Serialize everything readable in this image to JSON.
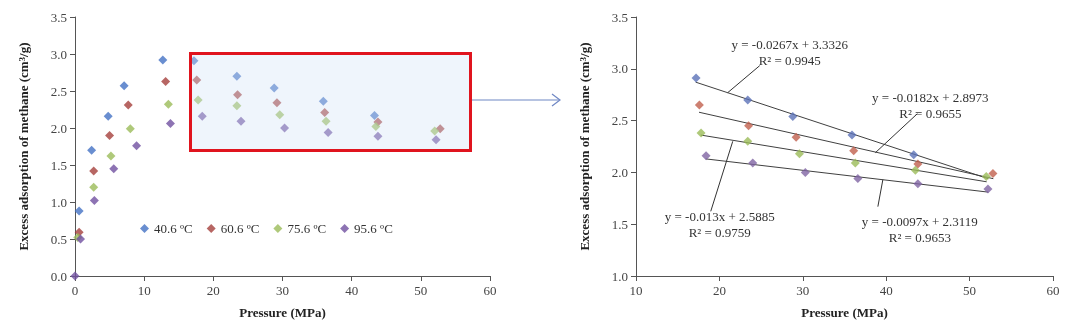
{
  "chart_data": [
    {
      "type": "scatter",
      "xlabel": "Pressure (MPa)",
      "ylabel": "Excess adsorption of methane (cm$^{3}$/g)",
      "xlim": [
        0,
        60
      ],
      "xticks": [
        0,
        10,
        20,
        30,
        40,
        50,
        60
      ],
      "ylim": [
        0,
        3.5
      ],
      "yticks": [
        {
          "value": 0,
          "label": "0.0"
        },
        {
          "value": 0.5,
          "label": "0.5"
        },
        {
          "value": 1,
          "label": "1.0"
        },
        {
          "value": 1.5,
          "label": "1.5"
        },
        {
          "value": 2,
          "label": "2.0"
        },
        {
          "value": 2.5,
          "label": "2.5"
        },
        {
          "value": 3,
          "label": "3.0"
        },
        {
          "value": 3.5,
          "label": "3.5"
        }
      ],
      "grid": false,
      "legend": "bottom",
      "marker": "diamond",
      "series": [
        {
          "name": "40.6 ºC",
          "color": "#4472c4",
          "x": [
            0.6,
            2.4,
            4.8,
            7.1,
            12.7,
            17.2,
            23.4,
            28.8,
            35.9,
            43.3
          ],
          "values": [
            0.88,
            1.7,
            2.16,
            2.57,
            2.92,
            2.91,
            2.7,
            2.54,
            2.36,
            2.17
          ]
        },
        {
          "name": "60.6 ºC",
          "color": "#a5403c",
          "x": [
            0.6,
            2.7,
            5.0,
            7.7,
            13.1,
            17.6,
            23.5,
            29.2,
            36.1,
            43.8,
            52.8
          ],
          "values": [
            0.59,
            1.42,
            1.9,
            2.31,
            2.63,
            2.65,
            2.45,
            2.34,
            2.21,
            2.08,
            1.99
          ]
        },
        {
          "name": "75.6 ºC",
          "color": "#9bbb59",
          "x": [
            0.4,
            2.7,
            5.2,
            8.0,
            13.5,
            17.8,
            23.4,
            29.6,
            36.3,
            43.5,
            52.0
          ],
          "values": [
            0.52,
            1.2,
            1.62,
            1.99,
            2.32,
            2.38,
            2.3,
            2.18,
            2.09,
            2.02,
            1.96
          ]
        },
        {
          "name": "95.6 ºC",
          "color": "#7050a0",
          "x": [
            0,
            0.8,
            2.8,
            5.6,
            8.9,
            13.8,
            18.4,
            24.0,
            30.3,
            36.6,
            43.8,
            52.2
          ],
          "values": [
            0,
            0.5,
            1.02,
            1.45,
            1.76,
            2.06,
            2.16,
            2.09,
            2.0,
            1.94,
            1.89,
            1.84
          ]
        }
      ]
    },
    {
      "type": "scatter",
      "xlabel": "Pressure (MPa)",
      "ylabel": "Excess adsorption of methane (cm$^{3}$/g)",
      "xlim": [
        10,
        60
      ],
      "xticks": [
        10,
        20,
        30,
        40,
        50,
        60
      ],
      "ylim": [
        1,
        3.5
      ],
      "yticks": [
        {
          "value": 1,
          "label": "1.0"
        },
        {
          "value": 1.5,
          "label": "1.5"
        },
        {
          "value": 2,
          "label": "2.0"
        },
        {
          "value": 2.5,
          "label": "2.5"
        },
        {
          "value": 3,
          "label": "3.0"
        },
        {
          "value": 3.5,
          "label": "3.5"
        }
      ],
      "grid": false,
      "legend": false,
      "marker": "diamond",
      "series": [
        {
          "color": "#5b72b8",
          "x": [
            17.2,
            23.4,
            28.8,
            35.9,
            43.3
          ],
          "values": [
            2.91,
            2.7,
            2.54,
            2.36,
            2.17
          ]
        },
        {
          "color": "#c0604d",
          "x": [
            17.6,
            23.5,
            29.2,
            36.1,
            43.8,
            52.8
          ],
          "values": [
            2.65,
            2.45,
            2.34,
            2.21,
            2.08,
            1.99
          ]
        },
        {
          "color": "#9bbb59",
          "x": [
            17.8,
            23.4,
            29.6,
            36.3,
            43.5,
            52.0
          ],
          "values": [
            2.38,
            2.3,
            2.18,
            2.09,
            2.02,
            1.96
          ]
        },
        {
          "color": "#8064a2",
          "x": [
            18.4,
            24.0,
            30.3,
            36.6,
            43.8,
            52.2
          ],
          "values": [
            2.16,
            2.09,
            2.0,
            1.94,
            1.89,
            1.84
          ]
        },
        {
          "type": "line",
          "marker": "none",
          "color": "#404040",
          "x": [
            17.2,
            52.2
          ],
          "values": [
            2.87,
            1.94
          ]
        },
        {
          "type": "line",
          "marker": "none",
          "color": "#404040",
          "x": [
            17.6,
            52.8
          ],
          "values": [
            2.58,
            1.94
          ]
        },
        {
          "type": "line",
          "marker": "none",
          "color": "#404040",
          "x": [
            17.8,
            52.0
          ],
          "values": [
            2.36,
            1.91
          ]
        },
        {
          "type": "line",
          "marker": "none",
          "color": "#404040",
          "x": [
            18.4,
            52.2
          ],
          "values": [
            2.13,
            1.81
          ]
        }
      ],
      "annotations": [
        {
          "text": "y = -0.0267x + 3.3326\nR² = 0.9945",
          "x": 21.0,
          "y": 2.77
        },
        {
          "text": "y = -0.0182x + 2.8973\nR² = 0.9655",
          "x": 38.7,
          "y": 2.19
        },
        {
          "text": "y = -0.013x + 2.5885\nR² = 0.9759",
          "x": 21.6,
          "y": 2.3
        },
        {
          "text": "y = -0.0097x + 2.3119\nR² = 0.9653",
          "x": 39.6,
          "y": 1.93
        }
      ]
    }
  ]
}
